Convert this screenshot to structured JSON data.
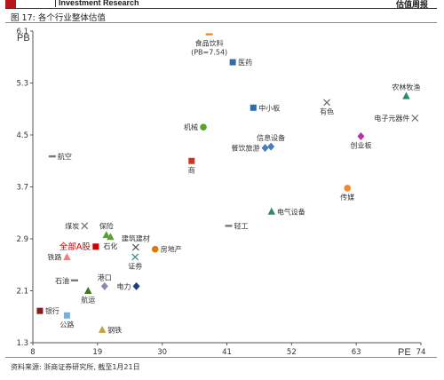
{
  "header": {
    "brand": "Investment Research",
    "right_tag": "估值周报"
  },
  "figure_title": "图 17: 各个行业整体估值",
  "source_note": "资料来源: 浙商证券研究所, 截至1月21日",
  "chart_data": {
    "type": "scatter",
    "xlabel": "PE",
    "ylabel": "PB",
    "xlim": [
      8,
      74
    ],
    "ylim": [
      1.3,
      6.1
    ],
    "xticks": [
      8,
      19,
      30,
      41,
      52,
      63,
      74
    ],
    "yticks": [
      1.3,
      2.1,
      2.9,
      3.7,
      4.5,
      5.3,
      6.1
    ],
    "grid": false,
    "points": [
      {
        "name": "食品饮料\n(PB=7.54)",
        "x": 38,
        "y": 6.05,
        "marker": "dash",
        "color": "#f08a2a",
        "label_pos": "below"
      },
      {
        "name": "医药",
        "x": 42,
        "y": 5.62,
        "marker": "square",
        "color": "#2e6da4",
        "label_pos": "right"
      },
      {
        "name": "中小板",
        "x": 45.5,
        "y": 4.92,
        "marker": "square",
        "color": "#2e6da4",
        "label_pos": "right"
      },
      {
        "name": "有色",
        "x": 58,
        "y": 5.0,
        "marker": "x",
        "color": "#6a6a6a",
        "label_pos": "below"
      },
      {
        "name": "农林牧渔",
        "x": 71.5,
        "y": 5.1,
        "marker": "triangle",
        "color": "#2a8c6a",
        "label_pos": "above"
      },
      {
        "name": "电子元器件",
        "x": 73,
        "y": 4.76,
        "marker": "x",
        "color": "#6a6a6a",
        "label_pos": "left"
      },
      {
        "name": "机械",
        "x": 37,
        "y": 4.62,
        "marker": "circle",
        "color": "#5aa02c",
        "label_pos": "left"
      },
      {
        "name": "信息设备",
        "x": 48.5,
        "y": 4.32,
        "marker": "diamond",
        "color": "#4a7fb5",
        "label_pos": "above"
      },
      {
        "name": "餐饮旅游",
        "x": 47.5,
        "y": 4.3,
        "marker": "diamond",
        "color": "#4a7fb5",
        "label_pos": "left"
      },
      {
        "name": "创业板",
        "x": 63.8,
        "y": 4.48,
        "marker": "diamond",
        "color": "#c02ca8",
        "label_pos": "below"
      },
      {
        "name": "航空",
        "x": 11.3,
        "y": 4.17,
        "marker": "dash",
        "color": "#7a7a7a",
        "label_pos": "right"
      },
      {
        "name": "商",
        "x": 35,
        "y": 4.1,
        "marker": "square",
        "color": "#c0392b",
        "label_pos": "below"
      },
      {
        "name": "传媒",
        "x": 61.5,
        "y": 3.68,
        "marker": "circle",
        "color": "#f08a2a",
        "label_pos": "below"
      },
      {
        "name": "煤炭",
        "x": 16.8,
        "y": 3.1,
        "marker": "x",
        "color": "#6a6a6a",
        "label_pos": "left"
      },
      {
        "name": "保险",
        "x": 20.5,
        "y": 2.96,
        "marker": "triangle",
        "color": "#5aa02c",
        "label_pos": "above"
      },
      {
        "name": "轻工",
        "x": 41.3,
        "y": 3.1,
        "marker": "dash",
        "color": "#7a7a7a",
        "label_pos": "right"
      },
      {
        "name": "电气设备",
        "x": 48.6,
        "y": 3.32,
        "marker": "triangle",
        "color": "#2a8c6a",
        "label_pos": "right"
      },
      {
        "name": "全部A股",
        "x": 18.7,
        "y": 2.78,
        "marker": "square",
        "color": "#d00000",
        "label_pos": "left",
        "highlight": true
      },
      {
        "name": "石化",
        "x": 21.2,
        "y": 2.93,
        "marker": "triangle",
        "color": "#5aa02c",
        "label_pos": "below"
      },
      {
        "name": "建筑建材",
        "x": 25.5,
        "y": 2.77,
        "marker": "x",
        "color": "#4a4a4a",
        "label_pos": "above"
      },
      {
        "name": "证券",
        "x": 25.4,
        "y": 2.62,
        "marker": "x",
        "color": "#3a8a8a",
        "label_pos": "below"
      },
      {
        "name": "房地产",
        "x": 28.8,
        "y": 2.74,
        "marker": "circle",
        "color": "#e07b00",
        "label_pos": "right"
      },
      {
        "name": "铁路",
        "x": 13.8,
        "y": 2.62,
        "marker": "triangle",
        "color": "#f08080",
        "label_pos": "left"
      },
      {
        "name": "石油",
        "x": 15.1,
        "y": 2.26,
        "marker": "dash",
        "color": "#7a7a7a",
        "label_pos": "left"
      },
      {
        "name": "港口",
        "x": 20.2,
        "y": 2.17,
        "marker": "diamond",
        "color": "#8a8ab0",
        "label_pos": "above"
      },
      {
        "name": "电力",
        "x": 25.6,
        "y": 2.17,
        "marker": "diamond",
        "color": "#1f3f7a",
        "label_pos": "left"
      },
      {
        "name": "航运",
        "x": 17.4,
        "y": 2.1,
        "marker": "triangle",
        "color": "#3a7a1a",
        "label_pos": "below"
      },
      {
        "name": "银行",
        "x": 9.2,
        "y": 1.79,
        "marker": "square",
        "color": "#8b1a1a",
        "label_pos": "right"
      },
      {
        "name": "公路",
        "x": 13.8,
        "y": 1.72,
        "marker": "square",
        "color": "#7ab0d8",
        "label_pos": "below"
      },
      {
        "name": "钢铁",
        "x": 19.8,
        "y": 1.5,
        "marker": "triangle",
        "color": "#c8a040",
        "label_pos": "right"
      }
    ]
  }
}
